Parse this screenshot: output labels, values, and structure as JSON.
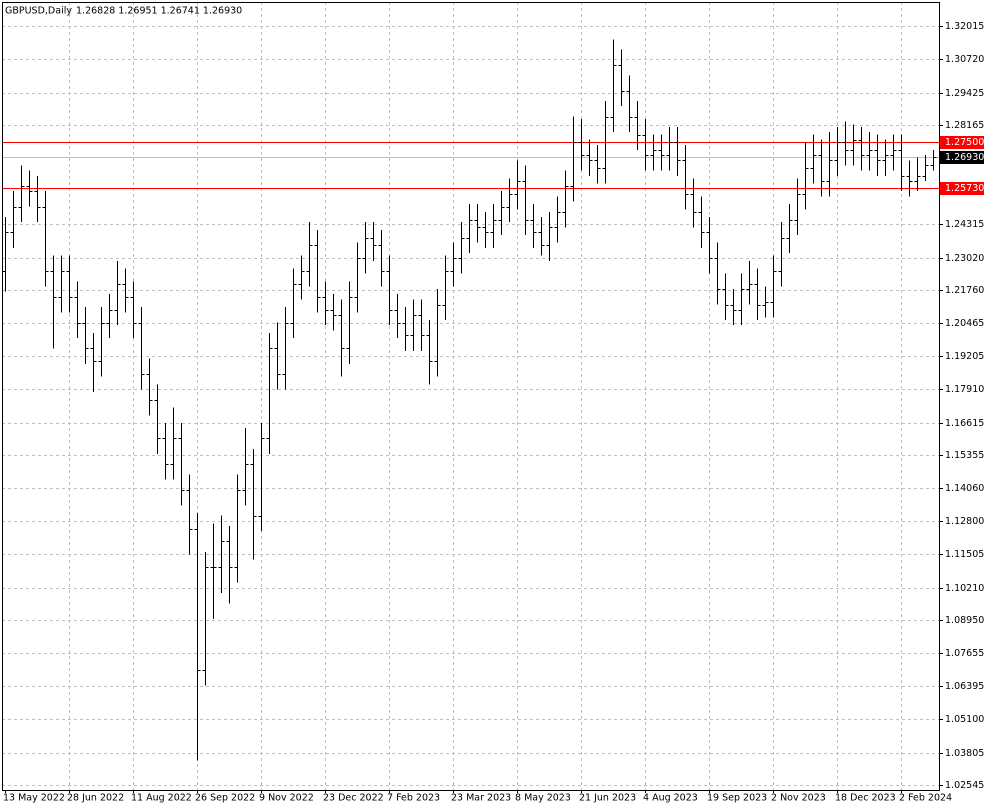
{
  "chart_data": {
    "type": "ohlc",
    "title": "GBPUSD,Daily",
    "subtitle": "1.26828 1.26951 1.26741 1.26930",
    "categories": [
      "13 May 2022",
      null,
      null,
      null,
      null,
      null,
      null,
      null,
      "28 Jun 2022",
      null,
      null,
      null,
      null,
      null,
      null,
      null,
      "11 Aug 2022",
      null,
      null,
      null,
      null,
      null,
      null,
      null,
      "26 Sep 2022",
      null,
      null,
      null,
      null,
      null,
      null,
      null,
      "9 Nov 2022",
      null,
      null,
      null,
      null,
      null,
      null,
      null,
      "23 Dec 2022",
      null,
      null,
      null,
      null,
      null,
      null,
      null,
      "7 Feb 2023",
      null,
      null,
      null,
      null,
      null,
      null,
      null,
      "23 Mar 2023",
      null,
      null,
      null,
      null,
      null,
      null,
      null,
      "8 May 2023",
      null,
      null,
      null,
      null,
      null,
      null,
      null,
      "21 Jun 2023",
      null,
      null,
      null,
      null,
      null,
      null,
      null,
      "4 Aug 2023",
      null,
      null,
      null,
      null,
      null,
      null,
      null,
      "19 Sep 2023",
      null,
      null,
      null,
      null,
      null,
      null,
      null,
      "2 Nov 2023",
      null,
      null,
      null,
      null,
      null,
      null,
      null,
      "18 Dec 2023",
      null,
      null,
      null,
      null,
      null,
      null,
      null,
      "2 Feb 2024",
      null,
      null,
      null,
      null
    ],
    "open": [
      1.225,
      1.24,
      1.25,
      1.258,
      1.256,
      1.25,
      1.225,
      1.215,
      1.225,
      1.215,
      1.205,
      1.195,
      1.19,
      1.205,
      1.21,
      1.22,
      1.215,
      1.205,
      1.185,
      1.175,
      1.16,
      1.15,
      1.16,
      1.14,
      1.125,
      1.07,
      1.11,
      1.11,
      1.12,
      1.11,
      1.14,
      1.15,
      1.13,
      1.16,
      1.195,
      1.185,
      1.205,
      1.22,
      1.225,
      1.235,
      1.215,
      1.21,
      1.208,
      1.195,
      1.215,
      1.23,
      1.238,
      1.235,
      1.225,
      1.21,
      1.205,
      1.2,
      1.208,
      1.2,
      1.19,
      1.212,
      1.225,
      1.23,
      1.238,
      1.245,
      1.242,
      1.24,
      1.245,
      1.25,
      1.255,
      1.26,
      1.245,
      1.24,
      1.235,
      1.242,
      1.248,
      1.258,
      1.275,
      1.27,
      1.268,
      1.265,
      1.285,
      1.305,
      1.295,
      1.285,
      1.278,
      1.27,
      1.272,
      1.27,
      1.275,
      1.268,
      1.255,
      1.248,
      1.24,
      1.23,
      1.218,
      1.212,
      1.21,
      1.218,
      1.22,
      1.212,
      1.213,
      1.225,
      1.238,
      1.245,
      1.255,
      1.265,
      1.27,
      1.26,
      1.268,
      1.275,
      1.272,
      1.276,
      1.27,
      1.272,
      1.268,
      1.27,
      1.272,
      1.262,
      1.26,
      1.262,
      1.266
    ],
    "high": [
      1.246,
      1.256,
      1.266,
      1.264,
      1.262,
      1.256,
      1.231,
      1.231,
      1.231,
      1.221,
      1.211,
      1.201,
      1.211,
      1.216,
      1.229,
      1.226,
      1.221,
      1.211,
      1.191,
      1.181,
      1.166,
      1.172,
      1.166,
      1.146,
      1.131,
      1.116,
      1.127,
      1.13,
      1.126,
      1.146,
      1.164,
      1.156,
      1.166,
      1.201,
      1.205,
      1.211,
      1.226,
      1.231,
      1.244,
      1.241,
      1.221,
      1.216,
      1.214,
      1.221,
      1.236,
      1.244,
      1.244,
      1.241,
      1.231,
      1.216,
      1.211,
      1.214,
      1.214,
      1.206,
      1.218,
      1.231,
      1.236,
      1.244,
      1.251,
      1.251,
      1.248,
      1.251,
      1.256,
      1.261,
      1.268,
      1.266,
      1.251,
      1.246,
      1.248,
      1.254,
      1.264,
      1.285,
      1.284,
      1.276,
      1.274,
      1.291,
      1.315,
      1.311,
      1.301,
      1.291,
      1.284,
      1.278,
      1.278,
      1.281,
      1.281,
      1.274,
      1.261,
      1.254,
      1.246,
      1.236,
      1.224,
      1.218,
      1.224,
      1.229,
      1.226,
      1.219,
      1.231,
      1.244,
      1.251,
      1.261,
      1.275,
      1.278,
      1.276,
      1.279,
      1.281,
      1.283,
      1.282,
      1.281,
      1.279,
      1.278,
      1.276,
      1.278,
      1.278,
      1.268,
      1.269,
      1.27,
      1.272
    ],
    "low": [
      1.217,
      1.234,
      1.244,
      1.25,
      1.244,
      1.219,
      1.195,
      1.209,
      1.209,
      1.199,
      1.189,
      1.178,
      1.184,
      1.199,
      1.204,
      1.209,
      1.199,
      1.179,
      1.169,
      1.154,
      1.144,
      1.144,
      1.134,
      1.115,
      1.035,
      1.064,
      1.09,
      1.1,
      1.096,
      1.104,
      1.134,
      1.113,
      1.124,
      1.154,
      1.179,
      1.179,
      1.199,
      1.214,
      1.219,
      1.209,
      1.204,
      1.202,
      1.184,
      1.189,
      1.209,
      1.224,
      1.229,
      1.219,
      1.204,
      1.199,
      1.194,
      1.194,
      1.194,
      1.181,
      1.184,
      1.206,
      1.219,
      1.224,
      1.232,
      1.236,
      1.234,
      1.234,
      1.239,
      1.244,
      1.249,
      1.239,
      1.234,
      1.231,
      1.229,
      1.236,
      1.242,
      1.252,
      1.264,
      1.262,
      1.259,
      1.259,
      1.279,
      1.289,
      1.279,
      1.272,
      1.264,
      1.264,
      1.264,
      1.264,
      1.262,
      1.249,
      1.242,
      1.234,
      1.224,
      1.212,
      1.206,
      1.204,
      1.204,
      1.212,
      1.206,
      1.207,
      1.207,
      1.219,
      1.232,
      1.239,
      1.249,
      1.259,
      1.254,
      1.254,
      1.262,
      1.266,
      1.266,
      1.264,
      1.264,
      1.262,
      1.262,
      1.264,
      1.256,
      1.254,
      1.256,
      1.26,
      1.264
    ],
    "close": [
      1.24,
      1.25,
      1.258,
      1.256,
      1.25,
      1.225,
      1.215,
      1.225,
      1.215,
      1.205,
      1.195,
      1.19,
      1.205,
      1.21,
      1.22,
      1.215,
      1.205,
      1.185,
      1.175,
      1.16,
      1.15,
      1.16,
      1.14,
      1.125,
      1.07,
      1.11,
      1.11,
      1.12,
      1.11,
      1.14,
      1.15,
      1.13,
      1.16,
      1.195,
      1.185,
      1.205,
      1.22,
      1.225,
      1.235,
      1.215,
      1.21,
      1.208,
      1.195,
      1.215,
      1.23,
      1.238,
      1.235,
      1.225,
      1.21,
      1.205,
      1.2,
      1.208,
      1.2,
      1.19,
      1.212,
      1.225,
      1.23,
      1.238,
      1.245,
      1.242,
      1.24,
      1.245,
      1.25,
      1.255,
      1.26,
      1.245,
      1.24,
      1.235,
      1.242,
      1.248,
      1.258,
      1.275,
      1.27,
      1.268,
      1.265,
      1.285,
      1.305,
      1.295,
      1.285,
      1.278,
      1.27,
      1.272,
      1.27,
      1.275,
      1.268,
      1.255,
      1.248,
      1.24,
      1.23,
      1.218,
      1.212,
      1.21,
      1.218,
      1.22,
      1.212,
      1.213,
      1.225,
      1.238,
      1.245,
      1.255,
      1.265,
      1.27,
      1.26,
      1.268,
      1.275,
      1.272,
      1.276,
      1.27,
      1.272,
      1.268,
      1.27,
      1.272,
      1.262,
      1.26,
      1.262,
      1.266,
      1.2693
    ],
    "color": "#000000",
    "ylim": [
      1.02351,
      1.32947
    ],
    "yticks": [
      1.32015,
      {
        "value": 1.3072,
        "label": "1.30720"
      },
      1.29425,
      1.28165,
      1.24315,
      {
        "value": 1.2302,
        "label": "1.23020"
      },
      {
        "value": 1.2176,
        "label": "1.21760"
      },
      1.20465,
      1.19205,
      {
        "value": 1.1791,
        "label": "1.17910"
      },
      1.16615,
      1.15355,
      {
        "value": 1.1406,
        "label": "1.14060"
      },
      {
        "value": 1.128,
        "label": "1.12800"
      },
      1.11505,
      {
        "value": 1.1021,
        "label": "1.10210"
      },
      {
        "value": 1.0895,
        "label": "1.08950"
      },
      1.07655,
      1.06395,
      {
        "value": 1.051,
        "label": "1.05100"
      },
      1.03805,
      1.02545
    ],
    "grid": true,
    "levels": [
      {
        "value": 1.275,
        "label": "1.27500",
        "color": "#ff0000"
      },
      {
        "value": 1.2573,
        "label": "1.25730",
        "color": "#ff0000"
      }
    ],
    "current": {
      "value": 1.2693,
      "label": "1.26930"
    }
  }
}
